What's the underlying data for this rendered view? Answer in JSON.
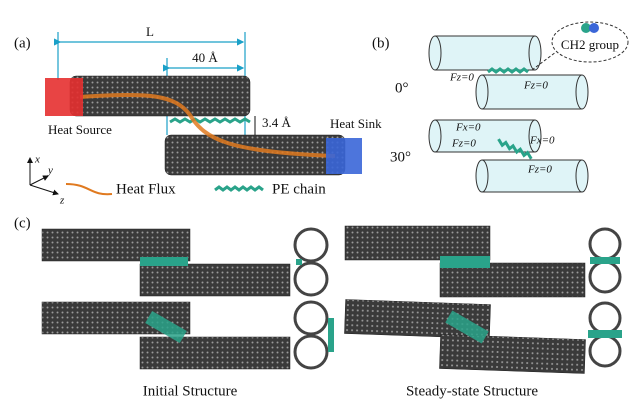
{
  "panel_a": {
    "label": "(a)",
    "length": "L",
    "overlap": "40 Å",
    "gap": "3.4 Å",
    "heat_source": "Heat Source",
    "heat_sink": "Heat Sink",
    "axes": {
      "x": "x",
      "y": "y",
      "z": "z"
    },
    "legend": [
      "Heat Flux",
      "PE chain"
    ]
  },
  "panel_b": {
    "label": "(b)",
    "callout": "CH2 group",
    "rows": [
      {
        "angle": "0°",
        "forces": [
          "Fz=0",
          "Fz=0"
        ]
      },
      {
        "angle": "30°",
        "forces": [
          "Fx=0",
          "Fz=0",
          "Fx=0",
          "Fz=0"
        ]
      }
    ]
  },
  "panel_c": {
    "label": "(c)",
    "captions": [
      "Initial Structure",
      "Steady-state Structure"
    ]
  }
}
